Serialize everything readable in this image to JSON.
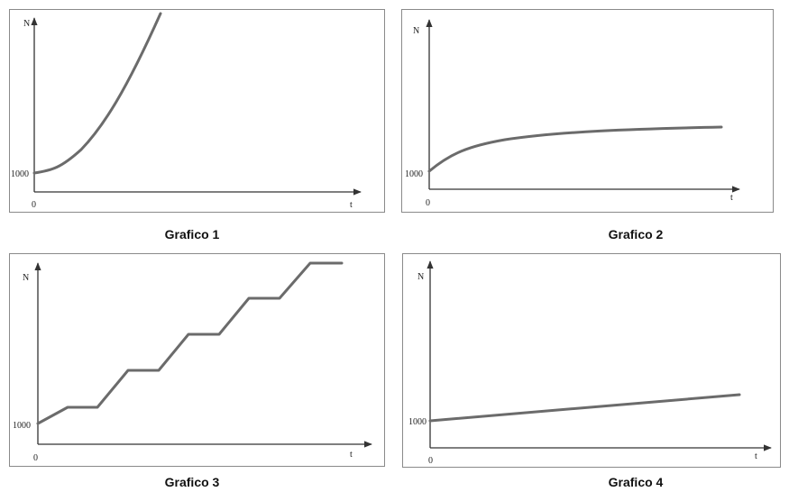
{
  "panels": [
    {
      "title": "Grafico 1",
      "y_label": "N",
      "x_label": "t",
      "y_origin_label": "1000",
      "x_origin_label": "0"
    },
    {
      "title": "Grafico 2",
      "y_label": "N",
      "x_label": "t",
      "y_origin_label": "1000",
      "x_origin_label": "0"
    },
    {
      "title": "Grafico 3",
      "y_label": "N",
      "x_label": "t",
      "y_origin_label": "1000",
      "x_origin_label": "0"
    },
    {
      "title": "Grafico 4",
      "y_label": "N",
      "x_label": "t",
      "y_origin_label": "1000",
      "x_origin_label": "0"
    }
  ]
}
